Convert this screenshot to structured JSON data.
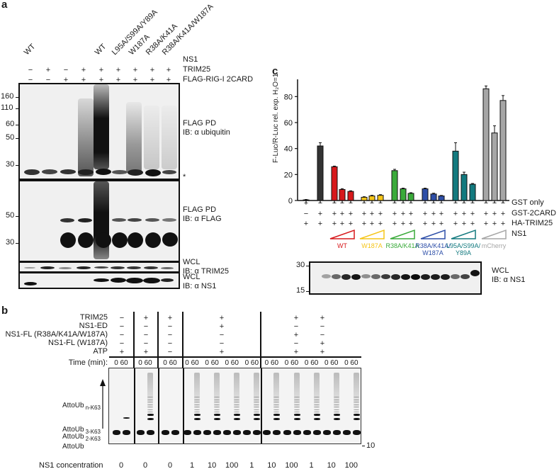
{
  "panel_a": {
    "letter": "a",
    "lane_labels": [
      "WT",
      "",
      "",
      "",
      "WT",
      "L95A/S99A/Y89A",
      "W187A",
      "R38A/K41A",
      "R38A/K41A/W187A"
    ],
    "row_labels": [
      "NS1",
      "TRIM25",
      "FLAG-RIG-I 2CARD"
    ],
    "trim25": [
      "−",
      "+",
      "−",
      "+",
      "+",
      "+",
      "+",
      "+",
      "+"
    ],
    "flag_rig": [
      "−",
      "−",
      "+",
      "+",
      "+",
      "+",
      "+",
      "+",
      "+"
    ],
    "mw_markers_top": [
      "160",
      "110",
      "60",
      "50",
      "30"
    ],
    "mw_markers_mid": [
      "50",
      "30"
    ],
    "blots": [
      {
        "line1": "FLAG PD",
        "line2": "IB: α ubiquitin"
      },
      {
        "line1": "FLAG PD",
        "line2": "IB: α FLAG"
      },
      {
        "line1": "WCL",
        "line2": "IB: α TRIM25"
      },
      {
        "line1": "WCL",
        "line2": "IB: α NS1"
      }
    ],
    "asterisk": "*"
  },
  "panel_b": {
    "letter": "b",
    "row_labels": [
      "TRIM25",
      "NS1-ED",
      "NS1-FL (R38A/K41A/W187A)",
      "NS1-FL (W187A)",
      "ATP"
    ],
    "groups": [
      {
        "TRIM25": "−",
        "NS1-ED": "−",
        "R38A": "−",
        "W187A": "−",
        "ATP": "+"
      },
      {
        "TRIM25": "+",
        "NS1-ED": "−",
        "R38A": "−",
        "W187A": "−",
        "ATP": "+"
      },
      {
        "TRIM25": "+",
        "NS1-ED": "−",
        "R38A": "−",
        "W187A": "−",
        "ATP": "−"
      },
      {
        "TRIM25": "+",
        "NS1-ED": "+",
        "R38A": "−",
        "W187A": "−",
        "ATP": "+"
      },
      {
        "TRIM25": "+",
        "NS1-ED": "−",
        "R38A": "+",
        "W187A": "−",
        "ATP": "+"
      },
      {
        "TRIM25": "+",
        "NS1-ED": "−",
        "R38A": "−",
        "W187A": "+",
        "ATP": "+"
      }
    ],
    "time_label": "Time (min):",
    "time_values": [
      "0 60",
      "0 60",
      "0 60",
      "0 60",
      "0 60",
      "0 60",
      "0 60",
      "0 60",
      "0 60",
      "0 60",
      "0 60",
      "0 60"
    ],
    "species_labels": {
      "n": {
        "main": "AttoUb",
        "sub": "n-K63"
      },
      "three": {
        "main": "AttoUb",
        "sub": "3-K63"
      },
      "two": {
        "main": "AttoUb",
        "sub": "2-K63"
      },
      "mono": {
        "main": "AttoUb"
      }
    },
    "mw_marker": "10",
    "conc_label": "NS1 concentration",
    "conc_values": [
      "0",
      "0",
      "0",
      "1",
      "10",
      "100",
      "1",
      "10",
      "100",
      "1",
      "10",
      "100"
    ]
  },
  "panel_c": {
    "letter": "c",
    "ylabel": "F-Luc/R-Luc rel. exp. H₂O=1",
    "yticks": [
      "0",
      "20",
      "40",
      "60",
      "80"
    ],
    "row_labels": [
      "GST only",
      "GST-2CARD",
      "HA-TRIM25",
      "NS1"
    ],
    "gst_only": [
      "+",
      "−",
      "−",
      "−",
      "−",
      "−",
      "−",
      "−",
      "−",
      "−",
      "−",
      "−",
      "−",
      "−",
      "−",
      "−",
      "−",
      "−",
      "−",
      "−"
    ],
    "gst_2card": [
      "−",
      "+",
      "+",
      "+",
      "+",
      "+",
      "+",
      "+",
      "+",
      "+",
      "+",
      "+",
      "+",
      "+",
      "+",
      "+",
      "+",
      "+",
      "+",
      "+"
    ],
    "ha_trim25": [
      "+",
      "+",
      "+",
      "+",
      "+",
      "+",
      "+",
      "+",
      "+",
      "+",
      "+",
      "+",
      "+",
      "+",
      "+",
      "+",
      "+",
      "+",
      "+",
      "+"
    ],
    "ns1_groups": [
      {
        "label": "WT",
        "color": "#d7191c"
      },
      {
        "label": "W187A",
        "color": "#f5c518"
      },
      {
        "label": "R38A/K41A",
        "color": "#3aaa3a"
      },
      {
        "label": "R38A/K41A/\nW187A",
        "label1": "R38A/K41A/",
        "label2": "W187A",
        "color": "#2e4fa8"
      },
      {
        "label": "L95A/S99A/\nY89A",
        "label1": "L95A/S99A/",
        "label2": "Y89A",
        "color": "#137a7f"
      },
      {
        "label": "mCherry",
        "color": "#a6a6a6"
      }
    ],
    "wcl_label1": "WCL",
    "wcl_label2": "IB: α NS1",
    "wcl_markers": [
      "30",
      "15"
    ]
  },
  "chart_data": {
    "type": "bar",
    "title": "",
    "xlabel": "",
    "ylabel": "F-Luc/R-Luc rel. exp. H2O=1",
    "ylim": [
      0,
      90
    ],
    "categories": [
      "GST only",
      "GST-2CARD",
      "WT low",
      "WT mid",
      "WT high",
      "W187A low",
      "W187A mid",
      "W187A high",
      "R38A/K41A low",
      "R38A/K41A mid",
      "R38A/K41A high",
      "R38A/K41A/W187A low",
      "R38A/K41A/W187A mid",
      "R38A/K41A/W187A high",
      "L95A/S99A/Y89A low",
      "L95A/S99A/Y89A mid",
      "L95A/S99A/Y89A high",
      "mCherry low",
      "mCherry mid",
      "mCherry high"
    ],
    "values": [
      0.5,
      42,
      26,
      8.5,
      7,
      2.5,
      3.5,
      4,
      23,
      9,
      5.5,
      9,
      5,
      3.5,
      38,
      20,
      12.5,
      86,
      52,
      77
    ],
    "errors": [
      0.3,
      2.5,
      0.5,
      0.6,
      0.5,
      0.4,
      0.5,
      0.5,
      1.0,
      0.5,
      0.5,
      0.5,
      0.6,
      0.4,
      6.5,
      1.8,
      0.6,
      2.2,
      5.5,
      3.8
    ],
    "colors": [
      "#111111",
      "#333333",
      "#d7191c",
      "#d7191c",
      "#d7191c",
      "#f5c518",
      "#f5c518",
      "#f5c518",
      "#3aaa3a",
      "#3aaa3a",
      "#3aaa3a",
      "#2e4fa8",
      "#2e4fa8",
      "#2e4fa8",
      "#137a7f",
      "#137a7f",
      "#137a7f",
      "#a6a6a6",
      "#a6a6a6",
      "#a6a6a6"
    ],
    "grid": false,
    "legend": "none"
  }
}
